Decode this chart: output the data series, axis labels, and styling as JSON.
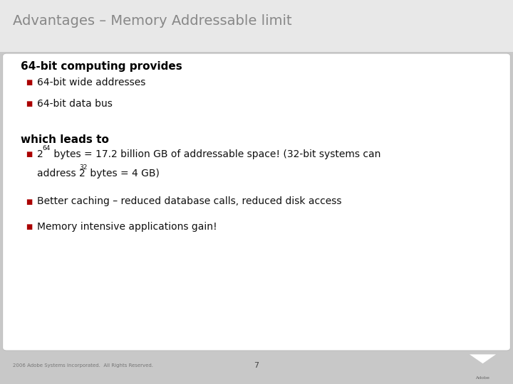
{
  "title": "Advantages – Memory Addressable limit",
  "title_color": "#888888",
  "title_fontsize": 14,
  "bg_outer": "#c8c8c8",
  "bg_inner": "#ffffff",
  "section1_header": "64-bit computing provides",
  "section1_bullet1": "64-bit wide addresses",
  "section1_bullet2": "64-bit data bus",
  "section2_header": "which leads to",
  "bullet2_pre": "2",
  "bullet2_sup1": "64",
  "bullet2_mid": " bytes = 17.2 billion GB of addressable space! (32-bit systems can",
  "bullet2_line2_pre": "address 2",
  "bullet2_sup2": "32",
  "bullet2_line2_post": " bytes = 4 GB)",
  "bullet3": "Better caching – reduced database calls, reduced disk access",
  "bullet4": "Memory intensive applications gain!",
  "bullet_color": "#aa0000",
  "header_color": "#000000",
  "text_color": "#111111",
  "footer_text": "2006 Adobe Systems Incorporated.  All Rights Reserved.",
  "footer_page": "7",
  "adobe_logo_color": "#cc0000",
  "font_family": "DejaVu Sans"
}
